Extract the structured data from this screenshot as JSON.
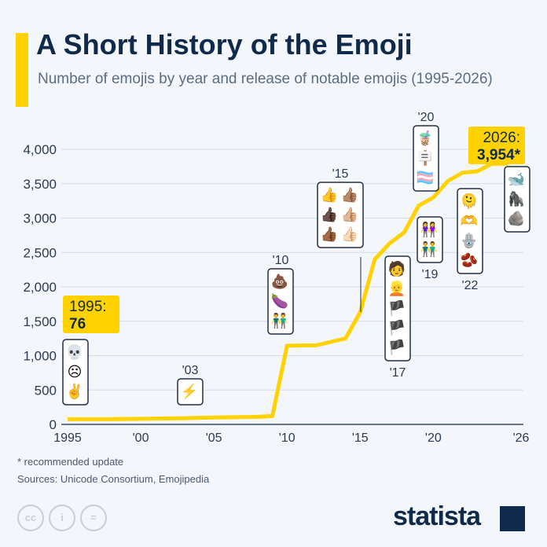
{
  "header": {
    "title": "A Short History of the Emoji",
    "subtitle": "Number of emojis by year and release of notable emojis (1995-2026)"
  },
  "chart_data": {
    "type": "line",
    "title": "A Short History of the Emoji",
    "subtitle": "Number of emojis by year and release of notable emojis (1995-2026)",
    "x": [
      1995,
      1998,
      2003,
      2005,
      2008,
      2009,
      2010,
      2012,
      2014,
      2015,
      2016,
      2017,
      2018,
      2019,
      2020,
      2021,
      2022,
      2023,
      2024,
      2025,
      2026
    ],
    "values": [
      76,
      76,
      90,
      100,
      110,
      122,
      1144,
      1150,
      1250,
      1630,
      2400,
      2630,
      2790,
      3180,
      3300,
      3540,
      3660,
      3680,
      3790,
      3790,
      3954
    ],
    "ylim": [
      0,
      4000
    ],
    "xlim": [
      1995,
      2026
    ],
    "yticks": [
      "0",
      "500",
      "1,000",
      "1,500",
      "2,000",
      "2,500",
      "3,000",
      "3,500",
      "4,000"
    ],
    "yticks_values": [
      0,
      500,
      1000,
      1500,
      2000,
      2500,
      3000,
      3500,
      4000
    ],
    "xticks": [
      "1995",
      "'00",
      "'05",
      "'10",
      "'15",
      "'20",
      "'26"
    ],
    "xticks_values": [
      1995,
      2000,
      2005,
      2010,
      2015,
      2020,
      2026
    ],
    "grid": true,
    "line_color": "#ffd200",
    "callouts": [
      {
        "label": "1995: ",
        "value": "76",
        "year": 1995
      },
      {
        "label": "2026: ",
        "value": "3,954*",
        "year": 2026
      }
    ],
    "annotations": [
      {
        "label": "",
        "year": 1995,
        "emojis": [
          "💀",
          "☹",
          "✌"
        ]
      },
      {
        "label": "'03",
        "year": 2003,
        "emojis": [
          "⚡"
        ]
      },
      {
        "label": "'10",
        "year": 2010,
        "emojis": [
          "💩",
          "🍆",
          "👬"
        ]
      },
      {
        "label": "'15",
        "year": 2015,
        "emojis": [
          "👍",
          "👍🏽",
          "👍🏿",
          "👍🏼",
          "👍🏾",
          "👍🏻"
        ]
      },
      {
        "label": "'17",
        "year": 2017,
        "emojis": [
          "🧑",
          "👱",
          "🏴",
          "🏴",
          "🏴"
        ]
      },
      {
        "label": "'19",
        "year": 2019,
        "emojis": [
          "👭",
          "👬"
        ]
      },
      {
        "label": "'20",
        "year": 2020,
        "emojis": [
          "🧋",
          "🪧",
          "🏳️‍⚧️"
        ]
      },
      {
        "label": "'22",
        "year": 2022,
        "emojis": [
          "🫠",
          "🫶",
          "🪬",
          "🫘"
        ]
      },
      {
        "label": "",
        "year": 2026,
        "emojis": [
          "🐋",
          "🦍",
          "🪨"
        ]
      }
    ]
  },
  "footer": {
    "note": "* recommended update",
    "sources": "Sources: Unicode Consortium, Emojipedia",
    "license_icons": [
      "cc-icon",
      "by-icon",
      "nd-icon"
    ],
    "cc": "cc",
    "by": "i",
    "nd": "=",
    "logo": "statista"
  }
}
